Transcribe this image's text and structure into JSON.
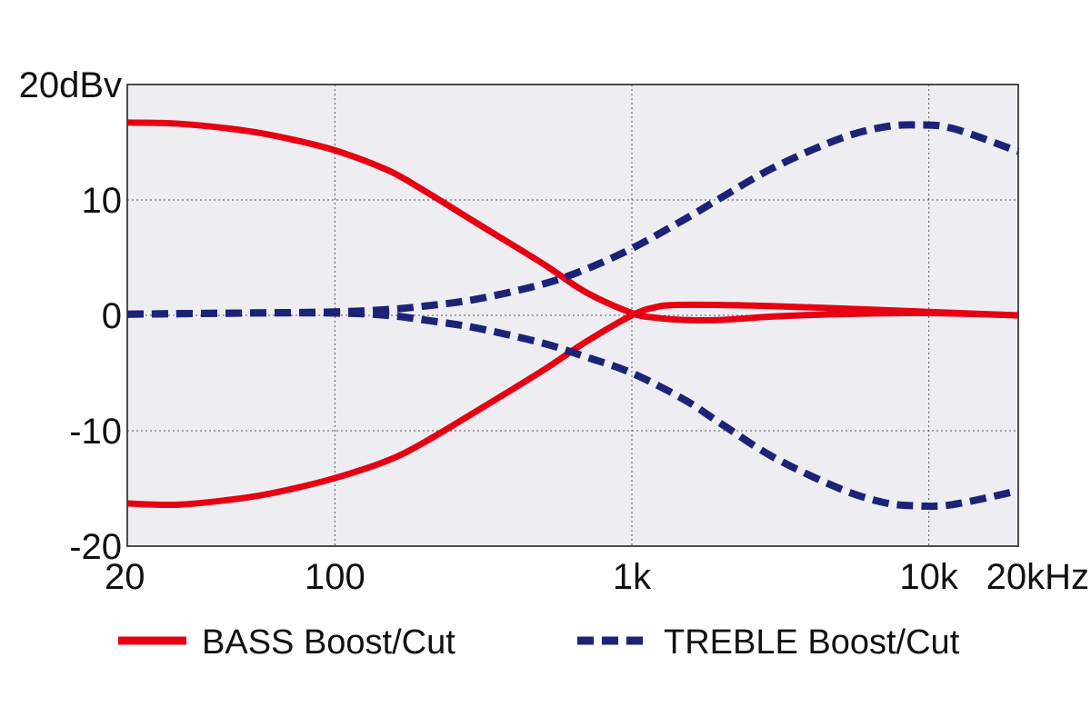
{
  "chart_data": {
    "type": "line",
    "title": "",
    "xlabel": "",
    "ylabel": "",
    "x_scale": "log",
    "xlim": [
      20,
      20000
    ],
    "ylim": [
      -20,
      20
    ],
    "grid": true,
    "legend_position": "bottom",
    "x_ticks": [
      {
        "value": 20,
        "label": "20"
      },
      {
        "value": 100,
        "label": "100"
      },
      {
        "value": 1000,
        "label": "1k"
      },
      {
        "value": 10000,
        "label": "10k"
      },
      {
        "value": 20000,
        "label": "20kHz"
      }
    ],
    "y_ticks": [
      {
        "value": 20,
        "label": "20dBv"
      },
      {
        "value": 10,
        "label": "10"
      },
      {
        "value": 0,
        "label": "0"
      },
      {
        "value": -10,
        "label": "-10"
      },
      {
        "value": -20,
        "label": "-20"
      }
    ],
    "legend": [
      {
        "label": "BASS Boost/Cut",
        "color": "#e60012",
        "style": "solid"
      },
      {
        "label": "TREBLE Boost/Cut",
        "color": "#1c2377",
        "style": "dashed"
      }
    ],
    "series": [
      {
        "legend_index": 0,
        "color": "#e60012",
        "style": "solid",
        "x": [
          20,
          30,
          50,
          70,
          100,
          150,
          200,
          300,
          500,
          700,
          1000,
          1200,
          1500,
          2000,
          3000,
          5000,
          10000,
          20000
        ],
        "y": [
          16.7,
          16.6,
          16,
          15.3,
          14.3,
          12.6,
          10.8,
          8,
          4.5,
          2,
          0.2,
          -0.2,
          -0.4,
          -0.4,
          -0.1,
          0.1,
          0.2,
          0
        ]
      },
      {
        "legend_index": 0,
        "color": "#e60012",
        "style": "solid",
        "x": [
          20,
          30,
          50,
          70,
          100,
          150,
          200,
          300,
          500,
          700,
          1000,
          1200,
          1400,
          2000,
          3000,
          5000,
          10000,
          20000
        ],
        "y": [
          -16.3,
          -16.4,
          -15.8,
          -15.1,
          -14.1,
          -12.6,
          -11,
          -8.3,
          -4.8,
          -2.3,
          0,
          0.7,
          0.9,
          0.9,
          0.8,
          0.6,
          0.3,
          0
        ]
      },
      {
        "legend_index": 1,
        "color": "#1c2377",
        "style": "dashed",
        "x": [
          20,
          50,
          100,
          150,
          200,
          300,
          500,
          700,
          1000,
          1500,
          2000,
          3000,
          5000,
          7000,
          9000,
          12000,
          20000
        ],
        "y": [
          0.1,
          0.2,
          0.3,
          0.5,
          0.8,
          1.4,
          2.7,
          4,
          5.8,
          8.3,
          10.2,
          12.8,
          15.3,
          16.3,
          16.5,
          16.2,
          14.2
        ]
      },
      {
        "legend_index": 1,
        "color": "#1c2377",
        "style": "dashed",
        "x": [
          20,
          50,
          100,
          150,
          200,
          300,
          500,
          700,
          1000,
          1500,
          2000,
          3000,
          5000,
          7000,
          9000,
          12000,
          20000
        ],
        "y": [
          0.1,
          0.2,
          0.2,
          0,
          -0.4,
          -1.1,
          -2.4,
          -3.6,
          -5,
          -7.3,
          -9.4,
          -12.3,
          -15,
          -16.2,
          -16.5,
          -16.4,
          -15.2
        ]
      }
    ]
  }
}
